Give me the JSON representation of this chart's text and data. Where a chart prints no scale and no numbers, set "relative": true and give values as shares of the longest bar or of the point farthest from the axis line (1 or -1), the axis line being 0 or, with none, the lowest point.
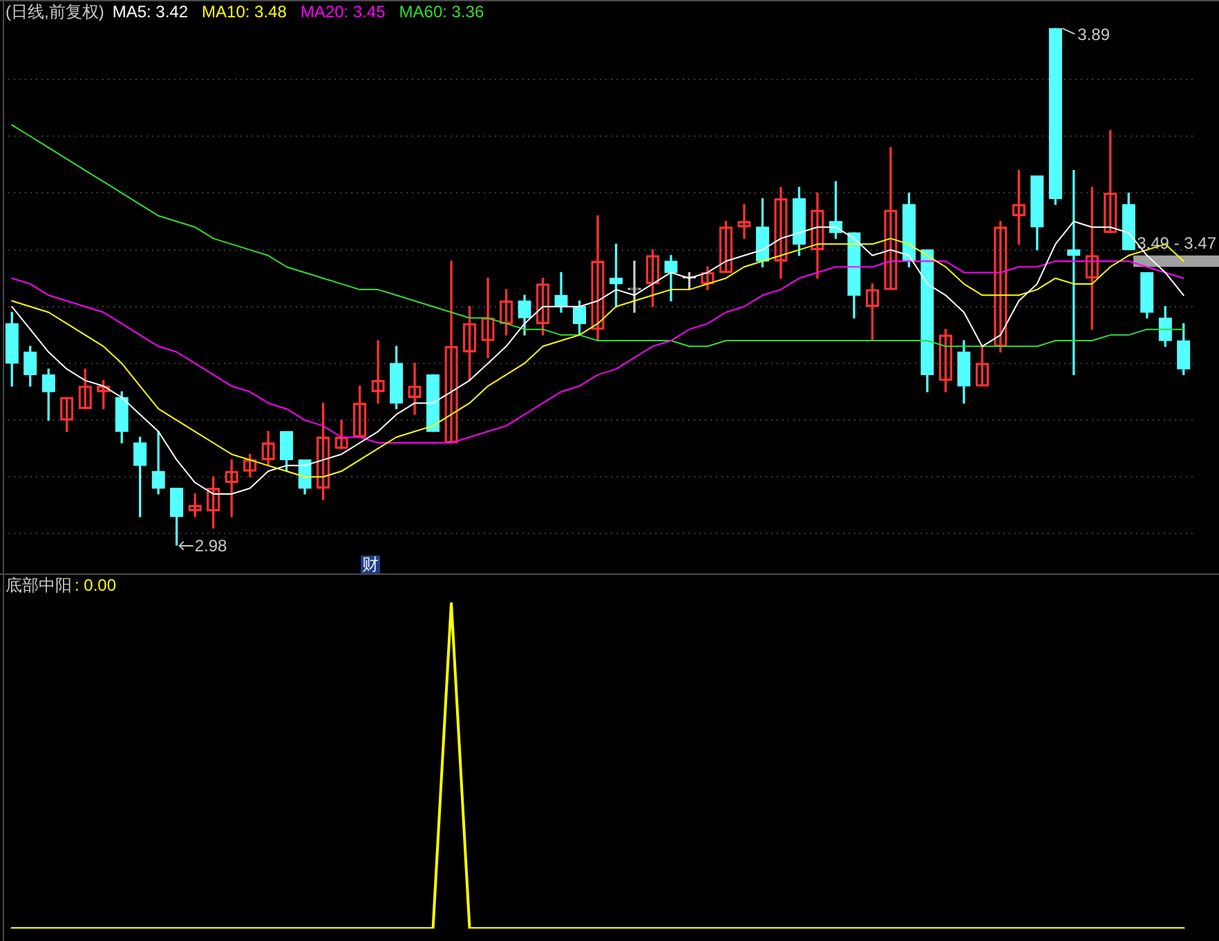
{
  "chart_data": [
    {
      "type": "candlestick",
      "title": "(日线,前复权)",
      "categories": [
        null,
        null,
        null,
        null,
        null,
        null,
        null,
        null,
        null,
        null,
        null,
        null,
        null,
        null,
        null,
        null,
        null,
        null,
        null,
        null,
        null,
        null,
        null,
        null,
        null,
        null,
        null,
        null,
        null,
        null,
        null,
        null,
        null,
        null,
        null,
        null,
        null,
        null,
        null,
        null,
        null,
        null,
        null,
        null,
        null,
        null,
        null,
        null,
        null,
        null,
        null,
        null,
        null,
        null,
        null,
        null,
        null,
        null,
        null,
        null,
        null,
        null,
        null,
        null,
        null
      ],
      "ohlc": [
        [
          3.37,
          3.39,
          3.26,
          3.3
        ],
        [
          3.32,
          3.33,
          3.26,
          3.28
        ],
        [
          3.28,
          3.29,
          3.2,
          3.25
        ],
        [
          3.2,
          3.24,
          3.18,
          3.24
        ],
        [
          3.22,
          3.29,
          3.22,
          3.26
        ],
        [
          3.25,
          3.27,
          3.22,
          3.26
        ],
        [
          3.24,
          3.25,
          3.16,
          3.18
        ],
        [
          3.16,
          3.17,
          3.03,
          3.12
        ],
        [
          3.11,
          3.18,
          3.07,
          3.08
        ],
        [
          3.08,
          3.08,
          2.98,
          3.03
        ],
        [
          3.04,
          3.07,
          3.03,
          3.05
        ],
        [
          3.04,
          3.1,
          3.01,
          3.08
        ],
        [
          3.09,
          3.13,
          3.03,
          3.11
        ],
        [
          3.11,
          3.14,
          3.1,
          3.13
        ],
        [
          3.13,
          3.18,
          3.12,
          3.16
        ],
        [
          3.18,
          3.18,
          3.11,
          3.13
        ],
        [
          3.13,
          3.13,
          3.07,
          3.08
        ],
        [
          3.08,
          3.23,
          3.06,
          3.17
        ],
        [
          3.15,
          3.2,
          3.15,
          3.17
        ],
        [
          3.17,
          3.26,
          3.17,
          3.23
        ],
        [
          3.25,
          3.34,
          3.23,
          3.27
        ],
        [
          3.3,
          3.33,
          3.22,
          3.23
        ],
        [
          3.24,
          3.3,
          3.21,
          3.26
        ],
        [
          3.28,
          3.28,
          3.18,
          3.18
        ],
        [
          3.16,
          3.48,
          3.16,
          3.33
        ],
        [
          3.32,
          3.4,
          3.27,
          3.37
        ],
        [
          3.34,
          3.45,
          3.31,
          3.38
        ],
        [
          3.37,
          3.43,
          3.35,
          3.41
        ],
        [
          3.41,
          3.42,
          3.35,
          3.38
        ],
        [
          3.37,
          3.45,
          3.35,
          3.44
        ],
        [
          3.42,
          3.46,
          3.39,
          3.4
        ],
        [
          3.4,
          3.41,
          3.35,
          3.37
        ],
        [
          3.36,
          3.56,
          3.34,
          3.48
        ],
        [
          3.45,
          3.51,
          3.4,
          3.44
        ],
        [
          3.43,
          3.48,
          3.39,
          3.43
        ],
        [
          3.44,
          3.5,
          3.4,
          3.49
        ],
        [
          3.48,
          3.49,
          3.41,
          3.46
        ],
        [
          3.45,
          3.46,
          3.43,
          3.45
        ],
        [
          3.44,
          3.47,
          3.43,
          3.46
        ],
        [
          3.46,
          3.55,
          3.46,
          3.54
        ],
        [
          3.54,
          3.58,
          3.52,
          3.55
        ],
        [
          3.54,
          3.59,
          3.47,
          3.48
        ],
        [
          3.48,
          3.61,
          3.45,
          3.59
        ],
        [
          3.59,
          3.61,
          3.49,
          3.51
        ],
        [
          3.5,
          3.6,
          3.45,
          3.57
        ],
        [
          3.55,
          3.62,
          3.52,
          3.53
        ],
        [
          3.53,
          3.53,
          3.38,
          3.42
        ],
        [
          3.4,
          3.44,
          3.34,
          3.43
        ],
        [
          3.43,
          3.68,
          3.43,
          3.57
        ],
        [
          3.58,
          3.6,
          3.47,
          3.48
        ],
        [
          3.5,
          3.5,
          3.25,
          3.28
        ],
        [
          3.27,
          3.36,
          3.25,
          3.35
        ],
        [
          3.32,
          3.34,
          3.23,
          3.26
        ],
        [
          3.26,
          3.33,
          3.26,
          3.3
        ],
        [
          3.33,
          3.55,
          3.32,
          3.54
        ],
        [
          3.56,
          3.64,
          3.51,
          3.58
        ],
        [
          3.63,
          3.63,
          3.5,
          3.54
        ],
        [
          3.89,
          3.89,
          3.58,
          3.59
        ],
        [
          3.5,
          3.64,
          3.28,
          3.49
        ],
        [
          3.45,
          3.61,
          3.36,
          3.49
        ],
        [
          3.53,
          3.71,
          3.53,
          3.6
        ],
        [
          3.58,
          3.6,
          3.5,
          3.5
        ],
        [
          3.46,
          3.46,
          3.38,
          3.39
        ],
        [
          3.38,
          3.4,
          3.33,
          3.34
        ],
        [
          3.34,
          3.37,
          3.28,
          3.29
        ]
      ],
      "colors": [
        "#54ffff",
        "#54ffff",
        "#54ffff",
        "#ff3232",
        "#ff3232",
        "#ff3232",
        "#54ffff",
        "#54ffff",
        "#54ffff",
        "#54ffff",
        "#ff3232",
        "#ff3232",
        "#ff3232",
        "#ff3232",
        "#ff3232",
        "#54ffff",
        "#54ffff",
        "#ff3232",
        "#ff3232",
        "#ff3232",
        "#ff3232",
        "#54ffff",
        "#ff3232",
        "#54ffff",
        "#ff3232",
        "#ff3232",
        "#ff3232",
        "#ff3232",
        "#54ffff",
        "#ff3232",
        "#54ffff",
        "#54ffff",
        "#ff3232",
        "#54ffff",
        "#c8c8c8",
        "#ff3232",
        "#54ffff",
        "#c8c8c8",
        "#ff3232",
        "#ff3232",
        "#ff3232",
        "#54ffff",
        "#ff3232",
        "#54ffff",
        "#ff3232",
        "#54ffff",
        "#54ffff",
        "#ff3232",
        "#ff3232",
        "#54ffff",
        "#54ffff",
        "#ff3232",
        "#54ffff",
        "#ff3232",
        "#ff3232",
        "#ff3232",
        "#54ffff",
        "#54ffff",
        "#54ffff",
        "#ff3232",
        "#ff3232",
        "#54ffff",
        "#54ffff",
        "#54ffff",
        "#54ffff"
      ],
      "series": [
        {
          "name": "MA5: 3.42",
          "type": "line",
          "color": "#ffffff",
          "values": [
            3.4,
            3.36,
            3.32,
            3.29,
            3.27,
            3.26,
            3.24,
            3.21,
            3.18,
            3.13,
            3.09,
            3.07,
            3.07,
            3.08,
            3.11,
            3.12,
            3.12,
            3.13,
            3.14,
            3.16,
            3.18,
            3.21,
            3.23,
            3.23,
            3.25,
            3.27,
            3.3,
            3.33,
            3.37,
            3.4,
            3.4,
            3.4,
            3.41,
            3.43,
            3.42,
            3.44,
            3.46,
            3.45,
            3.46,
            3.48,
            3.49,
            3.5,
            3.52,
            3.53,
            3.54,
            3.54,
            3.52,
            3.49,
            3.5,
            3.49,
            3.44,
            3.42,
            3.39,
            3.33,
            3.35,
            3.41,
            3.44,
            3.51,
            3.55,
            3.54,
            3.54,
            3.53,
            3.49,
            3.46,
            3.42
          ]
        },
        {
          "name": "MA10: 3.48",
          "type": "line",
          "color": "#ffff00",
          "values": [
            3.41,
            3.4,
            3.39,
            3.37,
            3.35,
            3.33,
            3.3,
            3.26,
            3.22,
            3.2,
            3.18,
            3.16,
            3.14,
            3.13,
            3.12,
            3.11,
            3.1,
            3.1,
            3.11,
            3.13,
            3.15,
            3.17,
            3.18,
            3.19,
            3.21,
            3.23,
            3.26,
            3.28,
            3.3,
            3.33,
            3.34,
            3.35,
            3.37,
            3.4,
            3.41,
            3.42,
            3.43,
            3.43,
            3.44,
            3.45,
            3.47,
            3.48,
            3.49,
            3.5,
            3.51,
            3.51,
            3.51,
            3.51,
            3.52,
            3.51,
            3.49,
            3.47,
            3.44,
            3.42,
            3.42,
            3.42,
            3.43,
            3.45,
            3.44,
            3.44,
            3.47,
            3.49,
            3.5,
            3.51,
            3.48
          ]
        },
        {
          "name": "MA20: 3.45",
          "type": "line",
          "color": "#ff00ff",
          "values": [
            3.45,
            3.44,
            3.42,
            3.41,
            3.4,
            3.39,
            3.37,
            3.35,
            3.33,
            3.32,
            3.3,
            3.28,
            3.26,
            3.25,
            3.23,
            3.22,
            3.2,
            3.19,
            3.17,
            3.17,
            3.16,
            3.16,
            3.16,
            3.16,
            3.16,
            3.17,
            3.18,
            3.19,
            3.21,
            3.23,
            3.25,
            3.26,
            3.28,
            3.29,
            3.31,
            3.33,
            3.34,
            3.36,
            3.37,
            3.39,
            3.4,
            3.42,
            3.43,
            3.45,
            3.46,
            3.47,
            3.47,
            3.47,
            3.48,
            3.48,
            3.48,
            3.48,
            3.46,
            3.46,
            3.46,
            3.47,
            3.47,
            3.48,
            3.48,
            3.48,
            3.48,
            3.48,
            3.47,
            3.46,
            3.45
          ]
        },
        {
          "name": "MA60: 3.36",
          "type": "line",
          "color": "#33dd33",
          "values": [
            3.72,
            3.7,
            3.68,
            3.66,
            3.64,
            3.62,
            3.6,
            3.58,
            3.56,
            3.55,
            3.54,
            3.52,
            3.51,
            3.5,
            3.49,
            3.47,
            3.46,
            3.45,
            3.44,
            3.43,
            3.43,
            3.42,
            3.41,
            3.4,
            3.39,
            3.38,
            3.38,
            3.37,
            3.36,
            3.36,
            3.35,
            3.35,
            3.34,
            3.34,
            3.34,
            3.34,
            3.34,
            3.33,
            3.33,
            3.34,
            3.34,
            3.34,
            3.34,
            3.34,
            3.34,
            3.34,
            3.34,
            3.34,
            3.34,
            3.34,
            3.34,
            3.33,
            3.33,
            3.33,
            3.33,
            3.33,
            3.33,
            3.34,
            3.34,
            3.34,
            3.35,
            3.35,
            3.36,
            3.36,
            3.36
          ]
        }
      ],
      "ylim": [
        2.93,
        3.94
      ],
      "yticks": [
        {
          "value": 3.0,
          "label": null
        },
        {
          "value": 3.1,
          "label": null
        },
        {
          "value": 3.2,
          "label": null
        },
        {
          "value": 3.3,
          "label": null
        },
        {
          "value": 3.4,
          "label": null
        },
        {
          "value": 3.5,
          "label": null
        },
        {
          "value": 3.6,
          "label": null
        },
        {
          "value": 3.7,
          "label": null
        },
        {
          "value": 3.8,
          "label": null
        }
      ],
      "grid": "y",
      "marker": "none",
      "annotations": [
        "3.89",
        "2.98",
        "财"
      ],
      "bands": [
        {
          "axis": "y",
          "from": 3.47,
          "to": 3.49,
          "label": "3.49 - 3.47",
          "color": "#a0a0a0"
        }
      ]
    },
    {
      "type": "line",
      "title": "底部中阳",
      "categories": [
        null,
        null,
        null,
        null,
        null,
        null,
        null,
        null,
        null,
        null,
        null,
        null,
        null,
        null,
        null,
        null,
        null,
        null,
        null,
        null,
        null,
        null,
        null,
        null,
        null,
        null,
        null,
        null,
        null,
        null,
        null,
        null,
        null,
        null,
        null,
        null,
        null,
        null,
        null,
        null,
        null,
        null,
        null,
        null,
        null,
        null,
        null,
        null,
        null,
        null,
        null,
        null,
        null,
        null,
        null,
        null,
        null,
        null,
        null,
        null,
        null,
        null,
        null,
        null,
        null
      ],
      "relative": true,
      "series": [
        {
          "color": "#ffff00",
          "values": [
            0,
            0,
            0,
            0,
            0,
            0,
            0,
            0,
            0,
            0,
            0,
            0,
            0,
            0,
            0,
            0,
            0,
            0,
            0,
            0,
            0,
            0,
            0,
            0,
            1,
            0,
            0,
            0,
            0,
            0,
            0,
            0,
            0,
            0,
            0,
            0,
            0,
            0,
            0,
            0,
            0,
            0,
            0,
            0,
            0,
            0,
            0,
            0,
            0,
            0,
            0,
            0,
            0,
            0,
            0,
            0,
            0,
            0,
            0,
            0,
            0,
            0,
            0,
            0,
            0
          ]
        }
      ],
      "marker": "none",
      "annotations": [
        ": 0.00"
      ]
    }
  ]
}
